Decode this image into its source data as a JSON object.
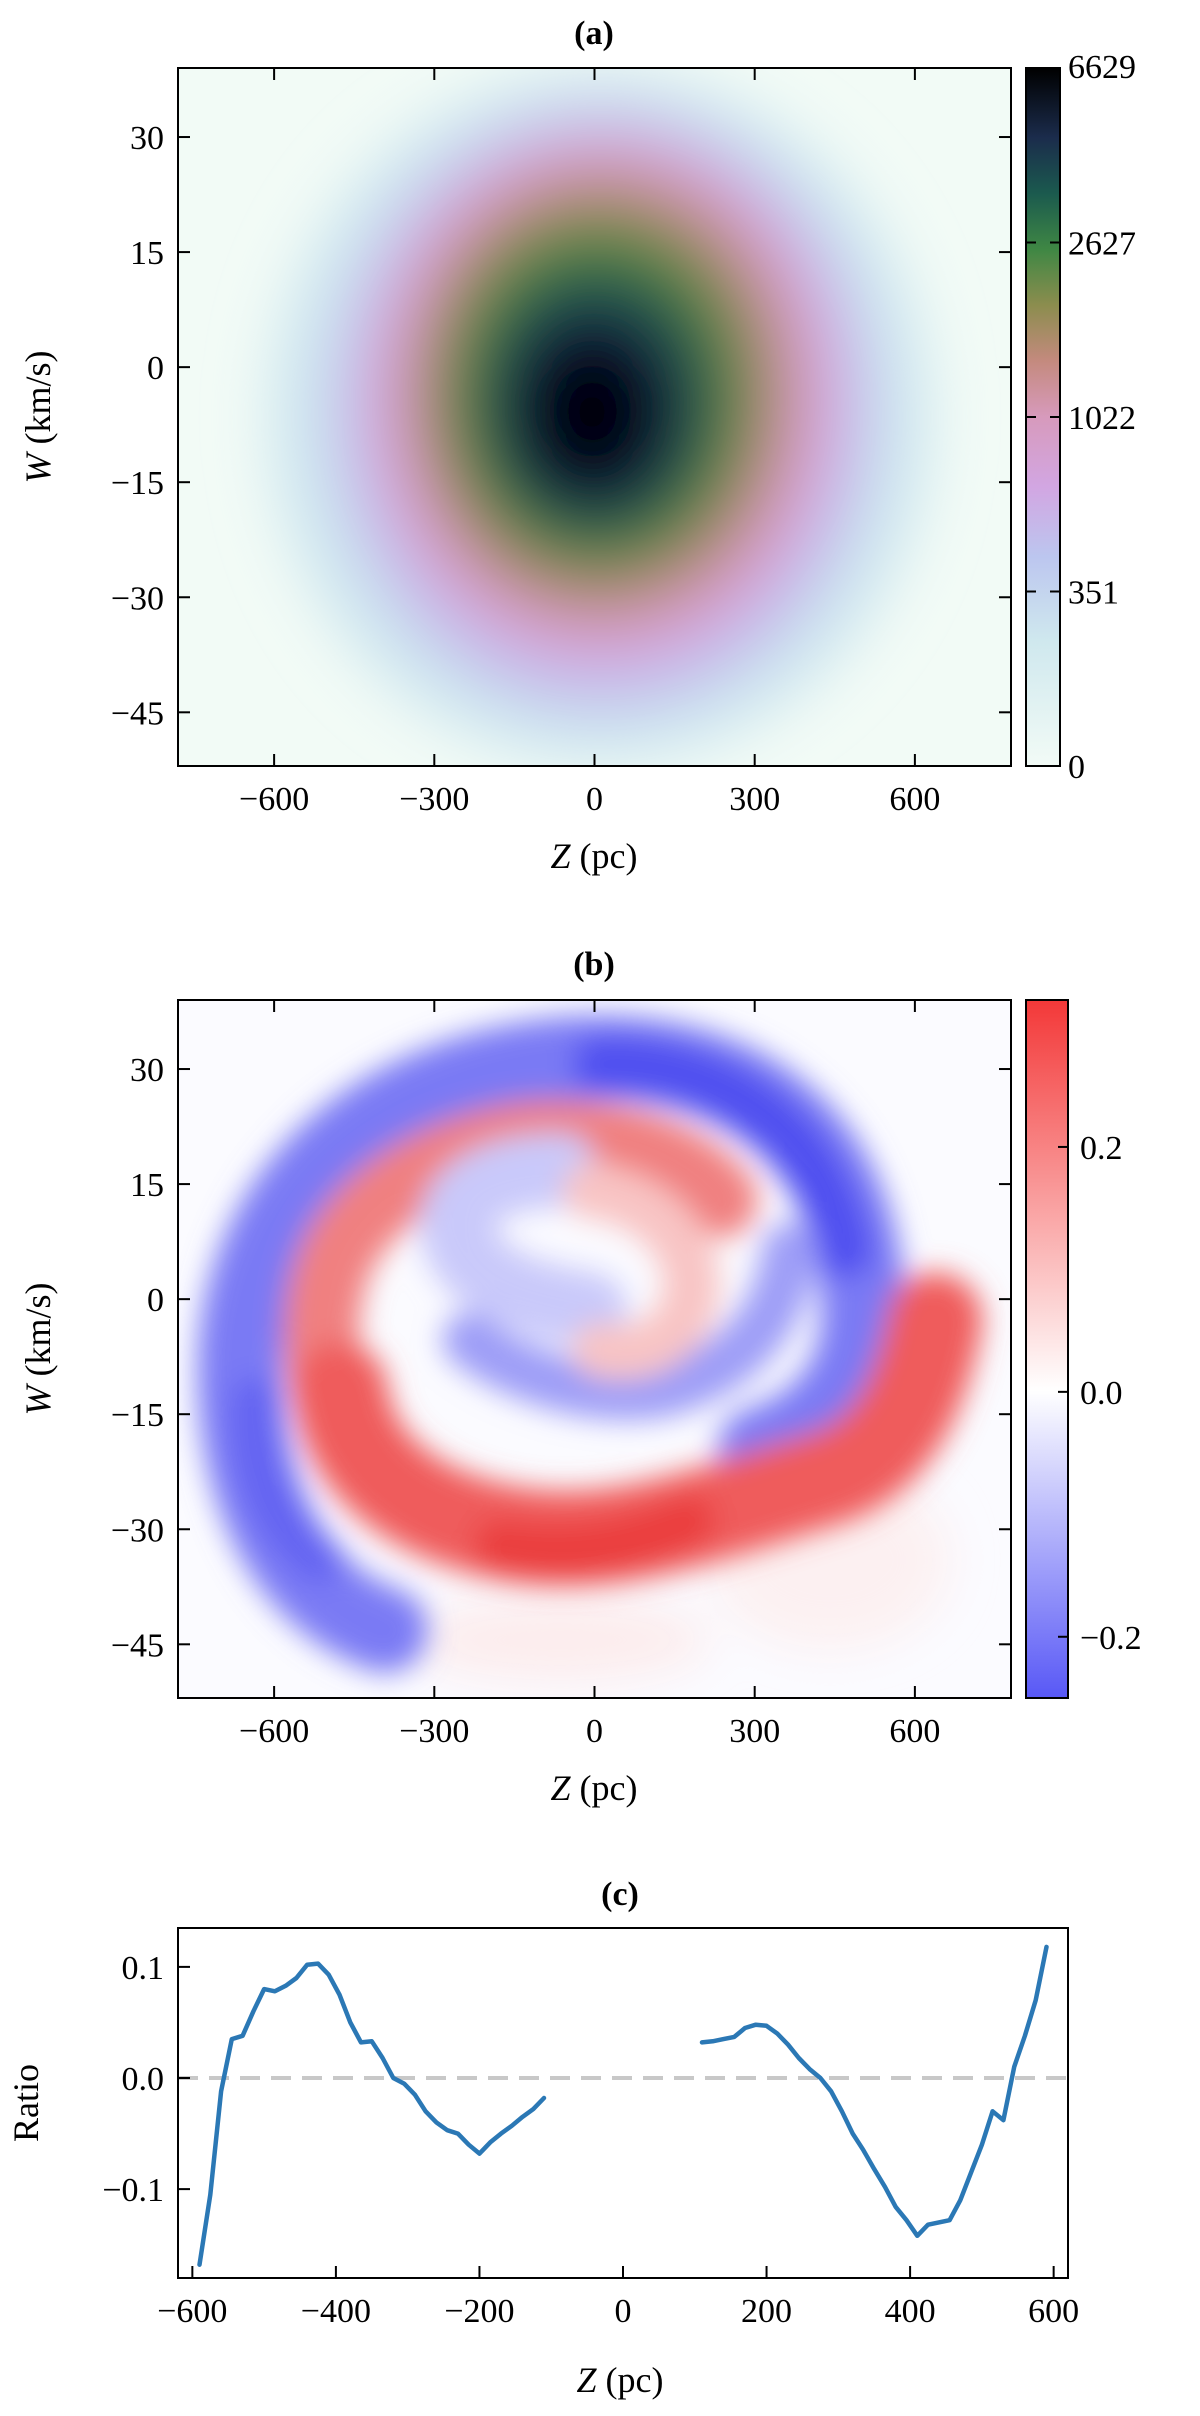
{
  "chart_data": [
    {
      "id": "a",
      "type": "heatmap",
      "title": "(a)",
      "xlabel_var": "Z",
      "xlabel_unit": " (pc)",
      "ylabel_var": "W",
      "ylabel_unit": " (km/s)",
      "xlim": [
        -780,
        780
      ],
      "ylim": [
        -52,
        39
      ],
      "xticks": [
        -600,
        -300,
        0,
        300,
        600
      ],
      "xtick_labels": [
        "−600",
        "−300",
        "0",
        "300",
        "600"
      ],
      "yticks": [
        30,
        15,
        0,
        -15,
        -30,
        -45
      ],
      "ytick_labels": [
        "30",
        "15",
        "0",
        "−15",
        "−30",
        "−45"
      ],
      "colorbar": {
        "ticks": [
          "6629",
          "2627",
          "1022",
          "351",
          "0"
        ],
        "colormap": "cubehelix_r",
        "max": 6629
      },
      "peak": {
        "z": 20,
        "w": -7,
        "count": 6629
      }
    },
    {
      "id": "b",
      "type": "heatmap",
      "title": "(b)",
      "xlabel_var": "Z",
      "xlabel_unit": " (pc)",
      "ylabel_var": "W",
      "ylabel_unit": " (km/s)",
      "xlim": [
        -780,
        780
      ],
      "ylim": [
        -52,
        39
      ],
      "xticks": [
        -600,
        -300,
        0,
        300,
        600
      ],
      "xtick_labels": [
        "−600",
        "−300",
        "0",
        "300",
        "600"
      ],
      "yticks": [
        30,
        15,
        0,
        -15,
        -30,
        -45
      ],
      "ytick_labels": [
        "30",
        "15",
        "0",
        "−15",
        "−30",
        "−45"
      ],
      "colorbar": {
        "range": [
          -0.25,
          0.32
        ],
        "ticks": [
          0.2,
          0.0,
          -0.2
        ],
        "tick_labels": [
          "0.2",
          "0.0",
          "−0.2"
        ],
        "colormap": "bwr"
      },
      "pattern": "phase spiral"
    },
    {
      "id": "c",
      "type": "line",
      "title": "(c)",
      "xlabel_var": "Z",
      "xlabel_unit": " (pc)",
      "ylabel": "Ratio",
      "xlim": [
        -620,
        620
      ],
      "ylim": [
        -0.18,
        0.135
      ],
      "xticks": [
        -600,
        -400,
        -200,
        0,
        200,
        400,
        600
      ],
      "xtick_labels": [
        "−600",
        "−400",
        "−200",
        "0",
        "200",
        "400",
        "600"
      ],
      "yticks": [
        0.1,
        0.0,
        -0.1
      ],
      "ytick_labels": [
        "0.1",
        "0.0",
        "−0.1"
      ],
      "reference_line": 0,
      "series": [
        {
          "name": "left segment",
          "x": [
            -590,
            -575,
            -560,
            -545,
            -530,
            -515,
            -500,
            -485,
            -470,
            -455,
            -440,
            -425,
            -410,
            -395,
            -380,
            -365,
            -350,
            -335,
            -320,
            -305,
            -290,
            -275,
            -260,
            -245,
            -230,
            -215,
            -200,
            -185,
            -170,
            -155,
            -140,
            -125,
            -110
          ],
          "y": [
            -0.168,
            -0.105,
            -0.012,
            0.035,
            0.038,
            0.06,
            0.08,
            0.078,
            0.083,
            0.09,
            0.102,
            0.103,
            0.093,
            0.075,
            0.05,
            0.032,
            0.033,
            0.018,
            0.0,
            -0.005,
            -0.015,
            -0.03,
            -0.04,
            -0.047,
            -0.05,
            -0.06,
            -0.068,
            -0.058,
            -0.05,
            -0.043,
            -0.035,
            -0.028,
            -0.018
          ]
        },
        {
          "name": "right segment",
          "x": [
            110,
            125,
            140,
            155,
            170,
            185,
            200,
            215,
            230,
            245,
            260,
            275,
            290,
            305,
            320,
            335,
            350,
            365,
            380,
            395,
            410,
            425,
            440,
            455,
            470,
            485,
            500,
            515,
            530,
            545,
            560,
            575,
            590
          ],
          "y": [
            0.032,
            0.033,
            0.035,
            0.037,
            0.045,
            0.048,
            0.047,
            0.04,
            0.03,
            0.018,
            0.008,
            0.0,
            -0.012,
            -0.03,
            -0.05,
            -0.065,
            -0.082,
            -0.098,
            -0.116,
            -0.128,
            -0.142,
            -0.132,
            -0.13,
            -0.128,
            -0.11,
            -0.085,
            -0.06,
            -0.03,
            -0.038,
            0.01,
            0.038,
            0.07,
            0.118
          ]
        }
      ]
    }
  ]
}
